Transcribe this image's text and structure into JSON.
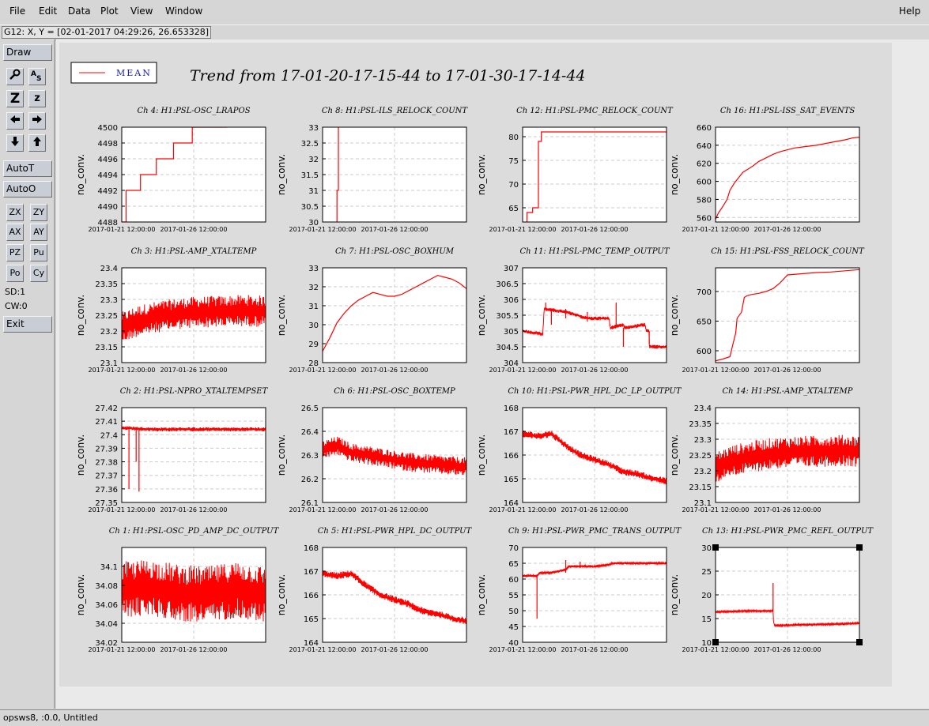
{
  "menus": {
    "file": "File",
    "edit": "Edit",
    "data": "Data",
    "plot": "Plot",
    "view": "View",
    "window": "Window",
    "help": "Help"
  },
  "coord_readout": "G12: X, Y = [02-01-2017 04:29:26, 26.653328]",
  "toolbar": {
    "draw": "Draw",
    "autot": "AutoT",
    "autoo": "AutoO",
    "zx": "ZX",
    "zy": "ZY",
    "ax": "AX",
    "ay": "AY",
    "pz": "PZ",
    "pu": "Pu",
    "po": "Po",
    "cy": "Cy",
    "sd": "SD:1",
    "cw": "CW:0",
    "exit": "Exit",
    "icons": [
      "magnify-icon",
      "text-icon",
      "zoom-icon",
      "zoom-small-icon",
      "arrow-left-icon",
      "arrow-right-icon",
      "arrow-down-icon",
      "arrow-up-icon"
    ]
  },
  "status": "opsws8, :0.0, Untitled",
  "colors": {
    "trace": "#ff0000",
    "legend_text": "#1a1aaa",
    "plot_bg": "#ffffff",
    "grid": "#cccccc"
  },
  "chart_data": {
    "type": "line",
    "title": "Trend from 17-01-20-17-15-44 to 17-01-30-17-14-44",
    "legend": {
      "label": "MEAN",
      "placement": "top-left"
    },
    "grid": true,
    "x_tick_labels": [
      "2017-01-21 12:00:00",
      "2017-01-26 12:00:00"
    ],
    "x_ticks": [
      0.0,
      0.5
    ],
    "panels": [
      {
        "title": "Ch 4: H1:PSL-OSC_LRAPOS",
        "ylabel": "no_conv.",
        "ylim": [
          4488,
          4500
        ],
        "yticks": [
          "4488",
          "4490",
          "4492",
          "4494",
          "4496",
          "4498",
          "4500"
        ],
        "noise": 0,
        "spikes": [],
        "series": [
          {
            "name": "MEAN",
            "x": [
              0,
              0.03,
              0.03,
              0.13,
              0.13,
              0.24,
              0.24,
              0.36,
              0.36,
              0.49,
              0.49,
              0.73,
              0.73
            ],
            "y": [
              4488,
              4488,
              4492,
              4492,
              4494,
              4494,
              4496,
              4496,
              4498,
              4498,
              4500,
              4500,
              4500
            ]
          }
        ]
      },
      {
        "title": "Ch 8: H1:PSL-ILS_RELOCK_COUNT",
        "ylabel": "no_conv.",
        "ylim": [
          30,
          33
        ],
        "yticks": [
          "30",
          "30.5",
          "31",
          "31.5",
          "32",
          "32.5",
          "33"
        ],
        "noise": 0,
        "spikes": [],
        "series": [
          {
            "name": "MEAN",
            "x": [
              0.1,
              0.1,
              0.11,
              0.11
            ],
            "y": [
              30,
              31,
              31,
              33
            ]
          }
        ]
      },
      {
        "title": "Ch 12: H1:PSL-PMC_RELOCK_COUNT",
        "ylabel": "no_conv.",
        "ylim": [
          62,
          82
        ],
        "yticks": [
          "65",
          "70",
          "75",
          "80"
        ],
        "noise": 0,
        "spikes": [],
        "series": [
          {
            "name": "MEAN",
            "x": [
              0.03,
              0.03,
              0.07,
              0.07,
              0.11,
              0.11,
              0.13,
              0.13,
              1.0
            ],
            "y": [
              62,
              64,
              64,
              65,
              65,
              79,
              79,
              81,
              81
            ]
          }
        ]
      },
      {
        "title": "Ch 16: H1:PSL-ISS_SAT_EVENTS",
        "ylabel": "no_conv.",
        "ylim": [
          555,
          660
        ],
        "yticks": [
          "560",
          "580",
          "600",
          "620",
          "640",
          "660"
        ],
        "noise": 0,
        "spikes": [],
        "series": [
          {
            "name": "MEAN",
            "x": [
              0,
              0.02,
              0.05,
              0.08,
              0.1,
              0.13,
              0.16,
              0.19,
              0.22,
              0.26,
              0.3,
              0.35,
              0.4,
              0.45,
              0.5,
              0.55,
              0.6,
              0.7,
              0.8,
              0.9,
              0.95,
              1.0
            ],
            "y": [
              558,
              565,
              572,
              580,
              590,
              598,
              604,
              610,
              613,
              617,
              622,
              626,
              630,
              633,
              635,
              637,
              638,
              640,
              643,
              646,
              648,
              649
            ]
          }
        ]
      },
      {
        "title": "Ch 3: H1:PSL-AMP_XTALTEMP",
        "ylabel": "no_conv.",
        "ylim": [
          23.1,
          23.4
        ],
        "yticks": [
          "23.1",
          "23.15",
          "23.2",
          "23.25",
          "23.3",
          "23.35",
          "23.4"
        ],
        "noise": 0.05,
        "spikes": [],
        "series": [
          {
            "name": "MEAN",
            "x": [
              0,
              0.1,
              0.25,
              0.4,
              0.55,
              0.7,
              0.85,
              1.0
            ],
            "y": [
              23.21,
              23.23,
              23.245,
              23.255,
              23.26,
              23.262,
              23.265,
              23.262
            ]
          }
        ]
      },
      {
        "title": "Ch 7: H1:PSL-OSC_BOXHUM",
        "ylabel": "no_conv.",
        "ylim": [
          28,
          33
        ],
        "yticks": [
          "28",
          "29",
          "30",
          "31",
          "32",
          "33"
        ],
        "noise": 0,
        "spikes": [],
        "series": [
          {
            "name": "MEAN",
            "x": [
              0,
              0.05,
              0.1,
              0.15,
              0.2,
              0.25,
              0.3,
              0.35,
              0.4,
              0.45,
              0.5,
              0.55,
              0.6,
              0.65,
              0.7,
              0.75,
              0.8,
              0.85,
              0.9,
              0.95,
              1.0
            ],
            "y": [
              28.6,
              29.3,
              30.1,
              30.6,
              31.0,
              31.3,
              31.5,
              31.7,
              31.6,
              31.5,
              31.5,
              31.6,
              31.8,
              32.0,
              32.2,
              32.4,
              32.6,
              32.5,
              32.4,
              32.2,
              31.9
            ]
          }
        ]
      },
      {
        "title": "Ch 11: H1:PSL-PMC_TEMP_OUTPUT",
        "ylabel": "no_conv.",
        "ylim": [
          304,
          307
        ],
        "yticks": [
          "304",
          "304.5",
          "305",
          "305.5",
          "306",
          "306.5",
          "307"
        ],
        "noise": 0.06,
        "spikes": [
          [
            0.16,
            305.9
          ],
          [
            0.2,
            305.2
          ],
          [
            0.3,
            305.4
          ],
          [
            0.45,
            305.3
          ],
          [
            0.65,
            305.9
          ],
          [
            0.7,
            304.5
          ],
          [
            0.88,
            304.6
          ]
        ],
        "series": [
          {
            "name": "MEAN",
            "x": [
              0,
              0.14,
              0.15,
              0.3,
              0.45,
              0.6,
              0.61,
              0.7,
              0.71,
              0.85,
              0.86,
              0.88,
              0.88,
              1.0
            ],
            "y": [
              305,
              304.9,
              305.7,
              305.6,
              305.4,
              305.4,
              305.1,
              305.2,
              305.1,
              305.2,
              305.0,
              305.0,
              304.5,
              304.5
            ]
          }
        ]
      },
      {
        "title": "Ch 15: H1:PSL-FSS_RELOCK_COUNT",
        "ylabel": "no_conv.",
        "ylim": [
          580,
          740
        ],
        "yticks": [
          "600",
          "650",
          "700"
        ],
        "noise": 0,
        "spikes": [],
        "series": [
          {
            "name": "MEAN",
            "x": [
              0,
              0.05,
              0.1,
              0.12,
              0.14,
              0.15,
              0.18,
              0.2,
              0.22,
              0.25,
              0.3,
              0.35,
              0.4,
              0.45,
              0.5,
              0.6,
              0.7,
              0.8,
              0.9,
              1.0
            ],
            "y": [
              583,
              586,
              590,
              610,
              630,
              655,
              665,
              690,
              693,
              695,
              697,
              700,
              705,
              715,
              728,
              730,
              732,
              733,
              735,
              737
            ]
          }
        ]
      },
      {
        "title": "Ch 2: H1:PSL-NPRO_XTALTEMPSET",
        "ylabel": "no_conv.",
        "ylim": [
          27.35,
          27.42
        ],
        "yticks": [
          "27.35",
          "27.36",
          "27.37",
          "27.38",
          "27.39",
          "27.4",
          "27.41",
          "27.42"
        ],
        "noise": 0.0015,
        "spikes": [
          [
            0.05,
            27.36
          ],
          [
            0.12,
            27.358
          ],
          [
            0.1,
            27.38
          ]
        ],
        "series": [
          {
            "name": "MEAN",
            "x": [
              0,
              0.2,
              0.4,
              0.6,
              0.8,
              1.0
            ],
            "y": [
              27.405,
              27.404,
              27.404,
              27.404,
              27.404,
              27.404
            ]
          }
        ]
      },
      {
        "title": "Ch 6: H1:PSL-OSC_BOXTEMP",
        "ylabel": "no_conv.",
        "ylim": [
          26.1,
          26.5
        ],
        "yticks": [
          "26.1",
          "26.2",
          "26.3",
          "26.4",
          "26.5"
        ],
        "noise": 0.04,
        "spikes": [],
        "series": [
          {
            "name": "MEAN",
            "x": [
              0,
              0.1,
              0.2,
              0.3,
              0.4,
              0.5,
              0.6,
              0.7,
              0.8,
              0.9,
              1.0
            ],
            "y": [
              26.32,
              26.34,
              26.31,
              26.3,
              26.29,
              26.28,
              26.27,
              26.265,
              26.26,
              26.255,
              26.25
            ]
          }
        ]
      },
      {
        "title": "Ch 10: H1:PSL-PWR_HPL_DC_LP_OUTPUT",
        "ylabel": "no_conv.",
        "ylim": [
          164,
          168
        ],
        "yticks": [
          "164",
          "165",
          "166",
          "167",
          "168"
        ],
        "noise": 0.15,
        "spikes": [],
        "series": [
          {
            "name": "MEAN",
            "x": [
              0,
              0.1,
              0.2,
              0.3,
              0.4,
              0.5,
              0.6,
              0.7,
              0.8,
              0.9,
              1.0
            ],
            "y": [
              166.9,
              166.8,
              166.9,
              166.4,
              166.0,
              165.8,
              165.6,
              165.3,
              165.2,
              165.0,
              164.9
            ]
          }
        ]
      },
      {
        "title": "Ch 14: H1:PSL-AMP_XTALTEMP",
        "ylabel": "no_conv.",
        "ylim": [
          23.1,
          23.4
        ],
        "yticks": [
          "23.1",
          "23.15",
          "23.2",
          "23.25",
          "23.3",
          "23.35",
          "23.4"
        ],
        "noise": 0.05,
        "spikes": [],
        "series": [
          {
            "name": "MEAN",
            "x": [
              0,
              0.1,
              0.25,
              0.4,
              0.55,
              0.7,
              0.85,
              1.0
            ],
            "y": [
              23.21,
              23.23,
              23.245,
              23.255,
              23.26,
              23.262,
              23.265,
              23.262
            ]
          }
        ]
      },
      {
        "title": "Ch 1: H1:PSL-OSC_PD_AMP_DC_OUTPUT",
        "ylabel": "no_conv.",
        "ylim": [
          34.02,
          34.12
        ],
        "yticks": [
          "34.02",
          "34.04",
          "34.06",
          "34.08",
          "34.1"
        ],
        "noise": 0.03,
        "spikes": [],
        "series": [
          {
            "name": "MEAN",
            "x": [
              0,
              0.2,
              0.4,
              0.6,
              0.8,
              1.0
            ],
            "y": [
              34.075,
              34.078,
              34.072,
              34.07,
              34.076,
              34.07
            ]
          }
        ]
      },
      {
        "title": "Ch 5: H1:PSL-PWR_HPL_DC_OUTPUT",
        "ylabel": "no_conv.",
        "ylim": [
          164,
          168
        ],
        "yticks": [
          "164",
          "165",
          "166",
          "167",
          "168"
        ],
        "noise": 0.15,
        "spikes": [],
        "series": [
          {
            "name": "MEAN",
            "x": [
              0,
              0.1,
              0.2,
              0.3,
              0.4,
              0.5,
              0.6,
              0.7,
              0.8,
              0.9,
              1.0
            ],
            "y": [
              166.9,
              166.8,
              166.9,
              166.4,
              166.0,
              165.8,
              165.6,
              165.3,
              165.2,
              165.0,
              164.9
            ]
          }
        ]
      },
      {
        "title": "Ch 9: H1:PSL-PWR_PMC_TRANS_OUTPUT",
        "ylabel": "no_conv.",
        "ylim": [
          40,
          70
        ],
        "yticks": [
          "40",
          "45",
          "50",
          "55",
          "60",
          "65",
          "70"
        ],
        "noise": 0.4,
        "spikes": [
          [
            0.1,
            47.5
          ],
          [
            0.3,
            66
          ],
          [
            0.4,
            65.5
          ]
        ],
        "series": [
          {
            "name": "MEAN",
            "x": [
              0,
              0.1,
              0.12,
              0.2,
              0.3,
              0.32,
              0.5,
              0.6,
              0.62,
              1.0
            ],
            "y": [
              61,
              61,
              62,
              62,
              63,
              64,
              64,
              64.5,
              65,
              65
            ]
          }
        ]
      },
      {
        "title": "Ch 13: H1:PSL-PWR_PMC_REFL_OUTPUT",
        "ylabel": "no_conv.",
        "ylim": [
          10,
          30
        ],
        "yticks": [
          "10",
          "15",
          "20",
          "25",
          "30"
        ],
        "noise": 0.2,
        "spikes": [
          [
            0.4,
            22.5
          ]
        ],
        "series": [
          {
            "name": "MEAN",
            "x": [
              0,
              0.2,
              0.4,
              0.4,
              0.41,
              0.6,
              0.8,
              1.0
            ],
            "y": [
              16.4,
              16.6,
              16.6,
              14.8,
              13.5,
              13.7,
              13.8,
              14.0
            ]
          }
        ]
      }
    ]
  }
}
